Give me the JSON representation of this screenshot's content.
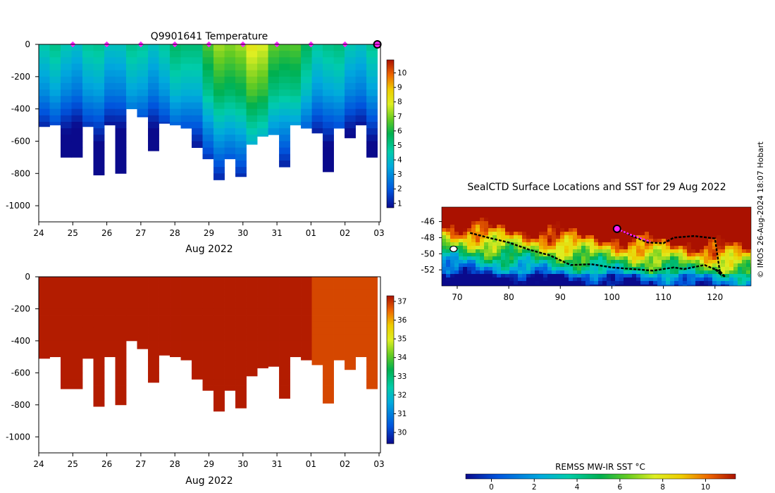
{
  "chart_data": [
    {
      "type": "heatmap",
      "panel": "temperature-profile",
      "title": "Q9901641  Temperature",
      "xlabel": "Aug 2022",
      "xticks": [
        "24",
        "25",
        "26",
        "27",
        "28",
        "29",
        "30",
        "31",
        "01",
        "02",
        "03"
      ],
      "yticks": [
        "0",
        "-200",
        "-400",
        "-600",
        "-800",
        "-1000"
      ],
      "ylim": [
        -1100,
        0
      ],
      "colorbar": {
        "ticks": [
          "1",
          "2",
          "3",
          "4",
          "5",
          "6",
          "7",
          "8",
          "9",
          "10"
        ],
        "range": [
          0.7,
          10.9
        ]
      },
      "profile_depths_m": [
        510,
        500,
        700,
        700,
        510,
        810,
        500,
        800,
        400,
        450,
        660,
        490,
        500,
        520,
        640,
        710,
        840,
        710,
        820,
        620,
        570,
        560,
        760,
        500,
        520,
        550,
        790,
        520,
        580,
        500,
        700
      ],
      "surface_markers_day": [
        25,
        26,
        27,
        28,
        29,
        30,
        31,
        32,
        33
      ]
    },
    {
      "type": "heatmap",
      "panel": "salinity-profile",
      "xlabel": "Aug 2022",
      "xticks": [
        "24",
        "25",
        "26",
        "27",
        "28",
        "29",
        "30",
        "31",
        "01",
        "02",
        "03"
      ],
      "yticks": [
        "0",
        "-200",
        "-400",
        "-600",
        "-800",
        "-1000"
      ],
      "ylim": [
        -1100,
        0
      ],
      "colorbar": {
        "ticks": [
          "30",
          "31",
          "32",
          "33",
          "34",
          "35",
          "36",
          "37"
        ],
        "range": [
          29.4,
          37.3
        ]
      },
      "profile_depths_m": [
        510,
        500,
        700,
        700,
        510,
        810,
        500,
        800,
        400,
        450,
        660,
        490,
        500,
        520,
        640,
        710,
        840,
        710,
        820,
        620,
        570,
        560,
        760,
        500,
        520,
        550,
        790,
        520,
        580,
        500,
        700
      ]
    },
    {
      "type": "heatmap",
      "panel": "sst-map",
      "title": "SealCTD Surface Locations and SST for 29 Aug 2022",
      "xticks": [
        "70",
        "80",
        "90",
        "100",
        "110",
        "120"
      ],
      "yticks": [
        "-46",
        "-48",
        "-50",
        "-52"
      ],
      "xlim": [
        67,
        127
      ],
      "ylim": [
        -54,
        -44.2
      ],
      "track": [
        [
          72.5,
          -47.4
        ],
        [
          76,
          -48.0
        ],
        [
          80,
          -48.6
        ],
        [
          84,
          -49.5
        ],
        [
          88,
          -50.2
        ],
        [
          92,
          -51.4
        ],
        [
          96,
          -51.3
        ],
        [
          100,
          -51.7
        ],
        [
          104,
          -51.9
        ],
        [
          108,
          -52.1
        ],
        [
          112,
          -51.7
        ],
        [
          114,
          -51.9
        ],
        [
          118,
          -51.4
        ],
        [
          121,
          -52.2
        ],
        [
          122,
          -52.9
        ],
        [
          120,
          -51.9
        ],
        [
          121,
          -52.5
        ],
        [
          120,
          -48.1
        ],
        [
          116,
          -47.8
        ],
        [
          112,
          -48.0
        ],
        [
          110,
          -48.7
        ],
        [
          107,
          -48.6
        ],
        [
          104,
          -47.8
        ],
        [
          101,
          -46.9
        ]
      ],
      "recent_track": [
        [
          101,
          -46.9
        ],
        [
          103.5,
          -47.6
        ],
        [
          107.5,
          -48.5
        ]
      ],
      "current_position": [
        101,
        -46.9
      ],
      "colorbar": {
        "label": "REMSS MW-IR SST °C",
        "ticks": [
          "0",
          "2",
          "4",
          "6",
          "8",
          "10"
        ],
        "range": [
          -1.2,
          11.4
        ]
      }
    }
  ],
  "credit": "© IMOS 26-Aug-2024 18:07 Hobart"
}
